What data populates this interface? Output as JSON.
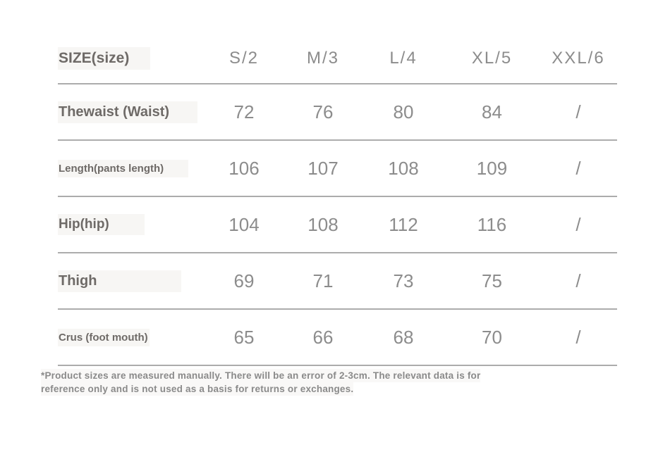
{
  "size_chart": {
    "title": "SIZE(size)",
    "columns": [
      "S/2",
      "M/3",
      "L/4",
      "XL/5",
      "XXL/6"
    ],
    "rows": [
      {
        "label": "Thewaist (Waist)",
        "values": [
          "72",
          "76",
          "80",
          "84",
          "/"
        ]
      },
      {
        "label": "Length(pants length)",
        "values": [
          "106",
          "107",
          "108",
          "109",
          "/"
        ]
      },
      {
        "label": "Hip(hip)",
        "values": [
          "104",
          "108",
          "112",
          "116",
          "/"
        ]
      },
      {
        "label": "Thigh",
        "values": [
          "69",
          "71",
          "73",
          "75",
          "/"
        ]
      },
      {
        "label": "Crus (foot mouth)",
        "values": [
          "65",
          "66",
          "68",
          "70",
          "/"
        ]
      }
    ],
    "footnote_line1": "*Product sizes are measured manually. There will be an error of 2-3cm. The relevant data is for",
    "footnote_line2": "reference only and is not used as a basis for returns or exchanges.",
    "colors": {
      "label_text": "#6e6a67",
      "value_text": "#8c8c8c",
      "divider": "#acacac",
      "footnote_text": "#8a8a8a",
      "label_highlight": "#f7f6f4",
      "background": "#ffffff"
    }
  }
}
